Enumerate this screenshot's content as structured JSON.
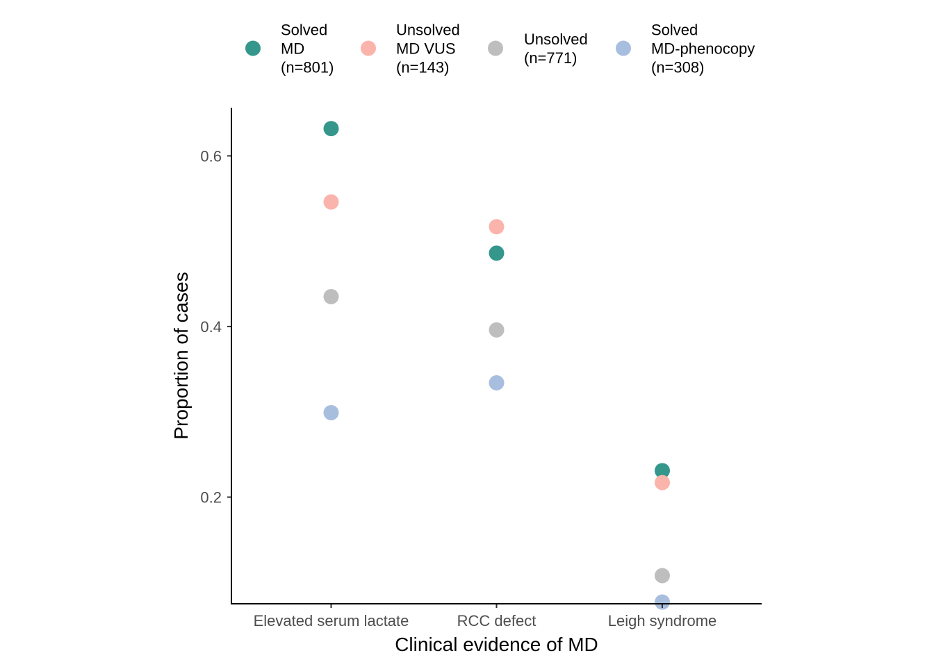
{
  "chart_data": {
    "type": "scatter",
    "xlabel": "Clinical evidence of MD",
    "ylabel": "Proportion of cases",
    "categories": [
      "Elevated serum lactate",
      "RCC defect",
      "Leigh syndrome"
    ],
    "ylim": [
      0.075,
      0.6565
    ],
    "yticks": [
      0.2,
      0.4,
      0.6
    ],
    "ytick_labels": [
      "0.2",
      "0.4",
      "0.6"
    ],
    "grid": false,
    "legend_position": "top",
    "series": [
      {
        "name": "Solved MD (n=801)",
        "legend_lines": [
          "Solved",
          "MD",
          "(n=801)"
        ],
        "color": "#35968c",
        "values": [
          0.632,
          0.486,
          0.231
        ]
      },
      {
        "name": "Unsolved MD VUS (n=143)",
        "legend_lines": [
          "Unsolved",
          "MD VUS",
          "(n=143)"
        ],
        "color": "#fbb4ab",
        "values": [
          0.546,
          0.517,
          0.217
        ]
      },
      {
        "name": "Unsolved (n=771)",
        "legend_lines": [
          "Unsolved",
          "(n=771)"
        ],
        "color": "#bebebe",
        "values": [
          0.435,
          0.396,
          0.108
        ]
      },
      {
        "name": "Solved MD-phenocopy (n=308)",
        "legend_lines": [
          "Solved",
          "MD-phenocopy",
          "(n=308)"
        ],
        "color": "#a8bedf",
        "values": [
          0.299,
          0.334,
          0.077
        ]
      }
    ]
  }
}
